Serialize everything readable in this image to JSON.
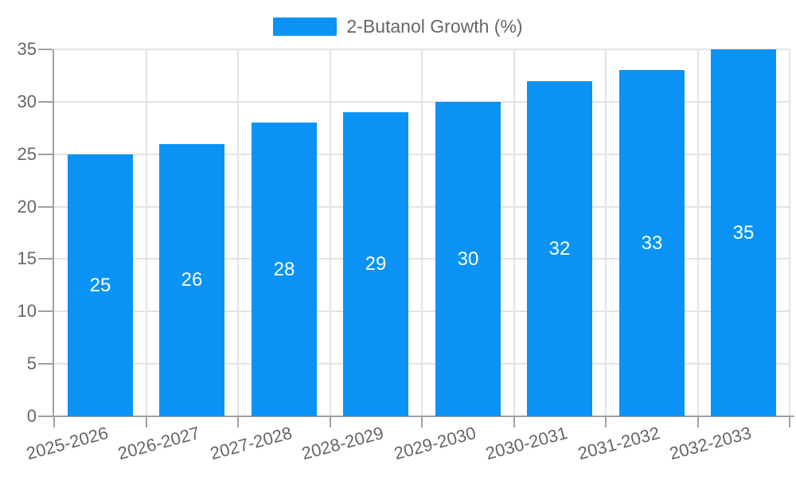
{
  "chart_data": {
    "type": "bar",
    "title": "",
    "xlabel": "",
    "ylabel": "",
    "categories": [
      "2025-2026",
      "2026-2027",
      "2027-2028",
      "2028-2029",
      "2029-2030",
      "2030-2031",
      "2031-2032",
      "2032-2033"
    ],
    "series": [
      {
        "name": "2-Butanol Growth (%)",
        "values": [
          25,
          26,
          28,
          29,
          30,
          32,
          33,
          35
        ]
      }
    ],
    "legend": {
      "position": "top-center",
      "entries": [
        "2-Butanol Growth (%)"
      ]
    },
    "ylim": [
      0,
      35
    ],
    "yticks": [
      0,
      5,
      10,
      15,
      20,
      25,
      30,
      35
    ],
    "grid": {
      "horizontal": true,
      "vertical": true
    },
    "value_labels": {
      "position": "inside-center",
      "color": "#ffffff"
    },
    "x_tick_label_rotation_deg": -15,
    "colors": {
      "bar": "#0a93f5",
      "axis": "#a0a0a0",
      "grid": "#e3e3e3",
      "tick_text": "#666666",
      "legend_text": "#666666",
      "value_text": "#ffffff",
      "background": "#ffffff"
    }
  }
}
